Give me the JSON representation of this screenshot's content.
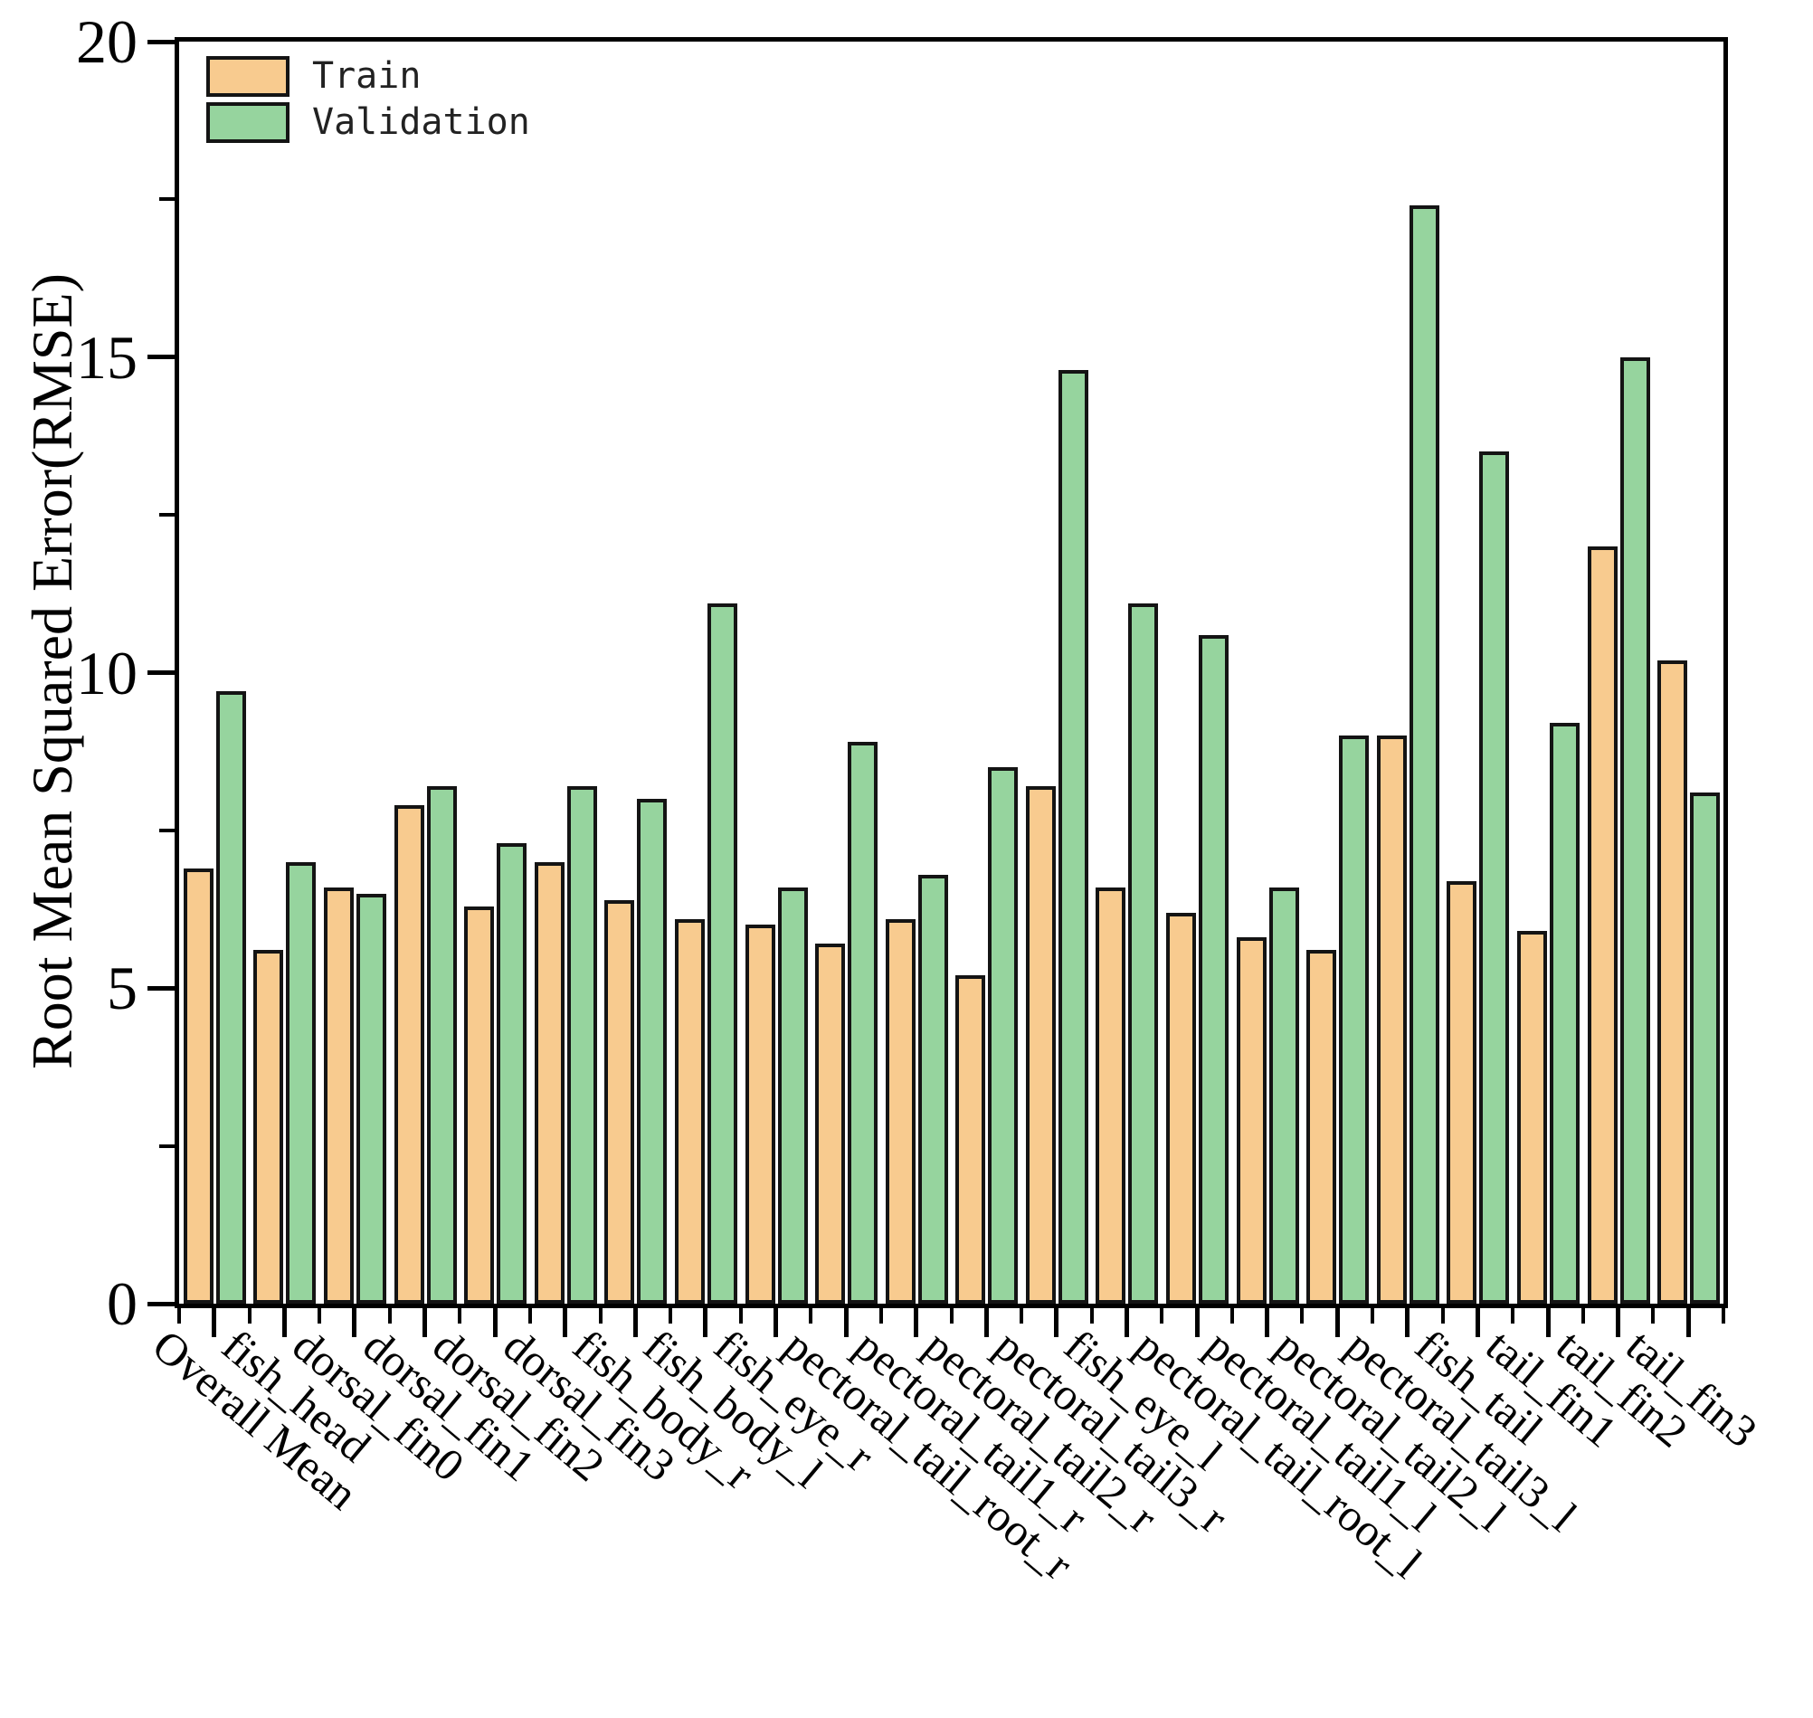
{
  "chart_data": {
    "type": "bar",
    "title": "",
    "xlabel": "",
    "ylabel": "Root Mean Squared Error(RMSE)",
    "ylim": [
      0,
      20
    ],
    "yticks": [
      "0",
      "5",
      "10",
      "15",
      "20"
    ],
    "ytick_values": [
      0,
      5,
      10,
      15,
      20
    ],
    "yminor_values": [
      2.5,
      7.5,
      12.5,
      17.5
    ],
    "grid": "off",
    "legend_position": "top-left",
    "categories": [
      "Overall Mean",
      "fish_head",
      "dorsal_fin0",
      "dorsal_fin1",
      "dorsal_fin2",
      "dorsal_fin3",
      "fish_body_r",
      "fish_body_l",
      "fish_eye_r",
      "pectoral_tail_root_r",
      "pectoral_tail1_r",
      "pectoral_tail2_r",
      "pectoral_tail3_r",
      "fish_eye_l",
      "pectoral_tail_root_l",
      "pectoral_tail1_l",
      "pectoral_tail2_l",
      "pectoral_tail3_l",
      "fish_tail",
      "tail_fin1",
      "tail_fin2",
      "tail_fin3"
    ],
    "series": [
      {
        "name": "Train",
        "color": "#F8CB8F",
        "values": [
          6.9,
          5.6,
          6.6,
          7.9,
          6.3,
          7.0,
          6.4,
          6.1,
          6.0,
          5.7,
          6.1,
          5.2,
          8.2,
          6.6,
          6.2,
          5.8,
          5.6,
          9.0,
          6.7,
          5.9,
          12.0,
          10.2
        ]
      },
      {
        "name": "Validation",
        "color": "#96D49E",
        "values": [
          9.7,
          7.0,
          6.5,
          8.2,
          7.3,
          8.2,
          8.0,
          11.1,
          6.6,
          8.9,
          6.8,
          8.5,
          14.8,
          11.1,
          10.6,
          6.6,
          9.0,
          17.4,
          13.5,
          9.2,
          15.0,
          8.1
        ]
      }
    ],
    "axis_color": "#000000",
    "bar_edge_color": "#141414",
    "background_color": "#ffffff"
  }
}
